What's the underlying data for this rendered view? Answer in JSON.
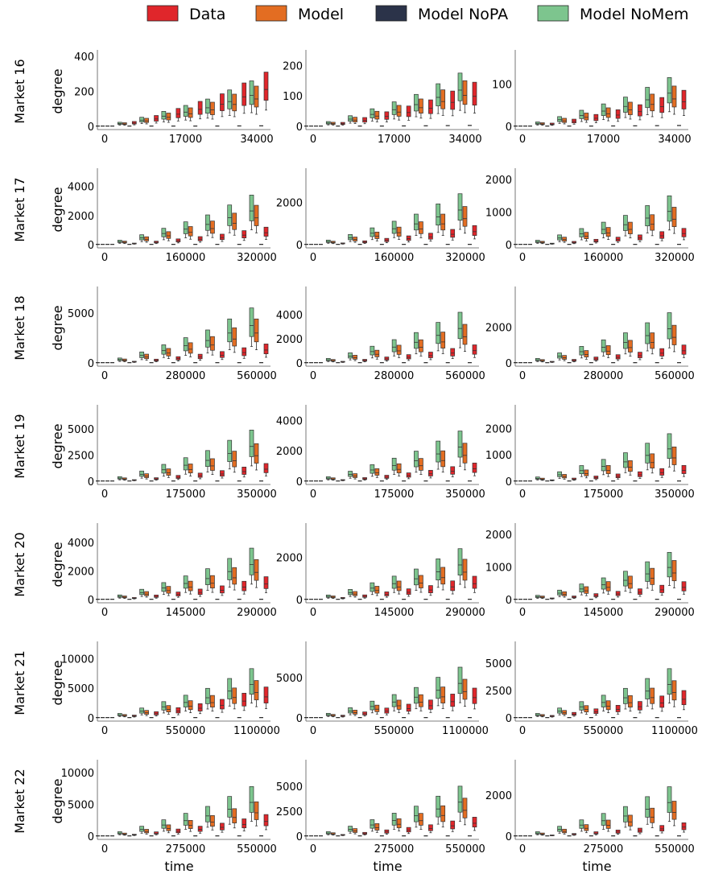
{
  "colors": {
    "Data": "#e0262b",
    "Model": "#e36d22",
    "Model NoPA": "#2b3349",
    "Model NoMem": "#7dc58e"
  },
  "legend": {
    "placement": "top",
    "entries": [
      {
        "label": "Data",
        "color": "#e0262b"
      },
      {
        "label": "Model",
        "color": "#e36d22"
      },
      {
        "label": "Model NoPA",
        "color": "#2b3349"
      },
      {
        "label": "Model NoMem",
        "color": "#7dc58e"
      }
    ]
  },
  "chart_data": {
    "type": "box",
    "ylabel": "degree",
    "xlabel": "time",
    "series_order": [
      "Model NoMem",
      "Model",
      "Model NoPA",
      "Data"
    ],
    "rows": [
      {
        "label": "Market 16",
        "x_ticks": [
          "0",
          "17000",
          "34000"
        ],
        "panels": [
          {
            "ymax": 400,
            "y_ticks": [
              "0",
              "200",
              "400"
            ],
            "y_tick_values": [
              0,
              200,
              400
            ],
            "nomem": 260,
            "model": 230,
            "nopa": 6,
            "data": 310
          },
          {
            "ymax": 230,
            "y_ticks": [
              "0",
              "100",
              "200"
            ],
            "y_tick_values": [
              0,
              100,
              200
            ],
            "nomem": 175,
            "model": 150,
            "nopa": 6,
            "data": 145
          },
          {
            "ymax": 165,
            "y_ticks": [
              "0",
              "100"
            ],
            "y_tick_values": [
              0,
              100
            ],
            "nomem": 115,
            "model": 95,
            "nopa": 4,
            "data": 85
          }
        ]
      },
      {
        "label": "Market 17",
        "x_ticks": [
          "0",
          "160000",
          "320000"
        ],
        "panels": [
          {
            "ymax": 4800,
            "y_ticks": [
              "0",
              "2000",
              "4000"
            ],
            "y_tick_values": [
              0,
              2000,
              4000
            ],
            "nomem": 3400,
            "model": 2700,
            "nopa": 20,
            "data": 1200
          },
          {
            "ymax": 3300,
            "y_ticks": [
              "0",
              "2000"
            ],
            "y_tick_values": [
              0,
              2000
            ],
            "nomem": 2400,
            "model": 1800,
            "nopa": 15,
            "data": 900
          },
          {
            "ymax": 2150,
            "y_ticks": [
              "0",
              "1000",
              "2000"
            ],
            "y_tick_values": [
              0,
              1000,
              2000
            ],
            "nomem": 1500,
            "model": 1150,
            "nopa": 10,
            "data": 500
          }
        ]
      },
      {
        "label": "Market 18",
        "x_ticks": [
          "0",
          "280000",
          "560000"
        ],
        "panels": [
          {
            "ymax": 7000,
            "y_ticks": [
              "0",
              "5000"
            ],
            "y_tick_values": [
              0,
              5000
            ],
            "nomem": 5500,
            "model": 4400,
            "nopa": 20,
            "data": 1900
          },
          {
            "ymax": 5800,
            "y_ticks": [
              "0",
              "2000",
              "4000"
            ],
            "y_tick_values": [
              0,
              2000,
              4000
            ],
            "nomem": 4200,
            "model": 3200,
            "nopa": 15,
            "data": 1500
          },
          {
            "ymax": 3900,
            "y_ticks": [
              "0",
              "2000"
            ],
            "y_tick_values": [
              0,
              2000
            ],
            "nomem": 2800,
            "model": 2100,
            "nopa": 10,
            "data": 1000
          }
        ]
      },
      {
        "label": "Market 19",
        "x_ticks": [
          "0",
          "175000",
          "350000"
        ],
        "panels": [
          {
            "ymax": 6700,
            "y_ticks": [
              "0",
              "2500",
              "5000"
            ],
            "y_tick_values": [
              0,
              2500,
              5000
            ],
            "nomem": 4900,
            "model": 3600,
            "nopa": 20,
            "data": 1700
          },
          {
            "ymax": 4600,
            "y_ticks": [
              "0",
              "2000",
              "4000"
            ],
            "y_tick_values": [
              0,
              2000,
              4000
            ],
            "nomem": 3300,
            "model": 2500,
            "nopa": 15,
            "data": 1200
          },
          {
            "ymax": 2650,
            "y_ticks": [
              "0",
              "1000",
              "2000"
            ],
            "y_tick_values": [
              0,
              1000,
              2000
            ],
            "nomem": 1800,
            "model": 1300,
            "nopa": 10,
            "data": 600
          }
        ]
      },
      {
        "label": "Market 20",
        "x_ticks": [
          "0",
          "145000",
          "290000"
        ],
        "panels": [
          {
            "ymax": 4900,
            "y_ticks": [
              "0",
              "2000",
              "4000"
            ],
            "y_tick_values": [
              0,
              2000,
              4000
            ],
            "nomem": 3600,
            "model": 2800,
            "nopa": 20,
            "data": 1600
          },
          {
            "ymax": 3300,
            "y_ticks": [
              "0",
              "2000"
            ],
            "y_tick_values": [
              0,
              2000
            ],
            "nomem": 2400,
            "model": 1900,
            "nopa": 15,
            "data": 1100
          },
          {
            "ymax": 2150,
            "y_ticks": [
              "0",
              "1000",
              "2000"
            ],
            "y_tick_values": [
              0,
              1000,
              2000
            ],
            "nomem": 1450,
            "model": 1200,
            "nopa": 10,
            "data": 550
          }
        ]
      },
      {
        "label": "Market 21",
        "x_ticks": [
          "0",
          "550000",
          "1100000"
        ],
        "panels": [
          {
            "ymax": 11800,
            "y_ticks": [
              "0",
              "5000",
              "10000"
            ],
            "y_tick_values": [
              0,
              5000,
              10000
            ],
            "nomem": 8300,
            "model": 6300,
            "nopa": 40,
            "data": 5200
          },
          {
            "ymax": 8700,
            "y_ticks": [
              "0",
              "5000"
            ],
            "y_tick_values": [
              0,
              5000
            ],
            "nomem": 6300,
            "model": 4800,
            "nopa": 30,
            "data": 3700
          },
          {
            "ymax": 6400,
            "y_ticks": [
              "0",
              "2500",
              "5000"
            ],
            "y_tick_values": [
              0,
              2500,
              5000
            ],
            "nomem": 4500,
            "model": 3400,
            "nopa": 20,
            "data": 2500
          }
        ]
      },
      {
        "label": "Market 22",
        "x_ticks": [
          "0",
          "275000",
          "550000"
        ],
        "panels": [
          {
            "ymax": 11000,
            "y_ticks": [
              "0",
              "5000",
              "10000"
            ],
            "y_tick_values": [
              0,
              5000,
              10000
            ],
            "nomem": 7800,
            "model": 5400,
            "nopa": 40,
            "data": 3400
          },
          {
            "ymax": 7000,
            "y_ticks": [
              "0",
              "2500",
              "5000"
            ],
            "y_tick_values": [
              0,
              2500,
              5000
            ],
            "nomem": 5000,
            "model": 3800,
            "nopa": 30,
            "data": 1900
          },
          {
            "ymax": 3400,
            "y_ticks": [
              "0",
              "2000"
            ],
            "y_tick_values": [
              0,
              2000
            ],
            "nomem": 2400,
            "model": 1700,
            "nopa": 15,
            "data": 650
          }
        ]
      }
    ]
  }
}
